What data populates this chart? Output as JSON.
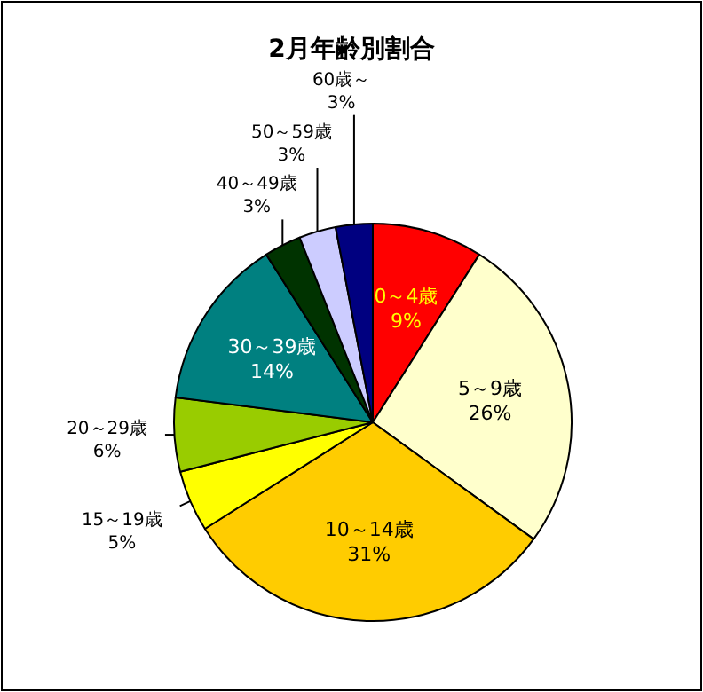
{
  "chart_data": {
    "type": "pie",
    "title": "2月年齢別割合",
    "categories": [
      "0～4歳",
      "5～9歳",
      "10～14歳",
      "15～19歳",
      "20～29歳",
      "30～39歳",
      "40～49歳",
      "50～59歳",
      "60歳～"
    ],
    "values": [
      9,
      26,
      31,
      5,
      6,
      14,
      3,
      3,
      3
    ],
    "colors": [
      "#ff0000",
      "#ffffcc",
      "#ffcc00",
      "#ffff00",
      "#99cc00",
      "#008080",
      "#003300",
      "#ccccff",
      "#000080"
    ],
    "value_labels": [
      "9%",
      "26%",
      "31%",
      "5%",
      "6%",
      "14%",
      "3%",
      "3%",
      "3%"
    ]
  }
}
